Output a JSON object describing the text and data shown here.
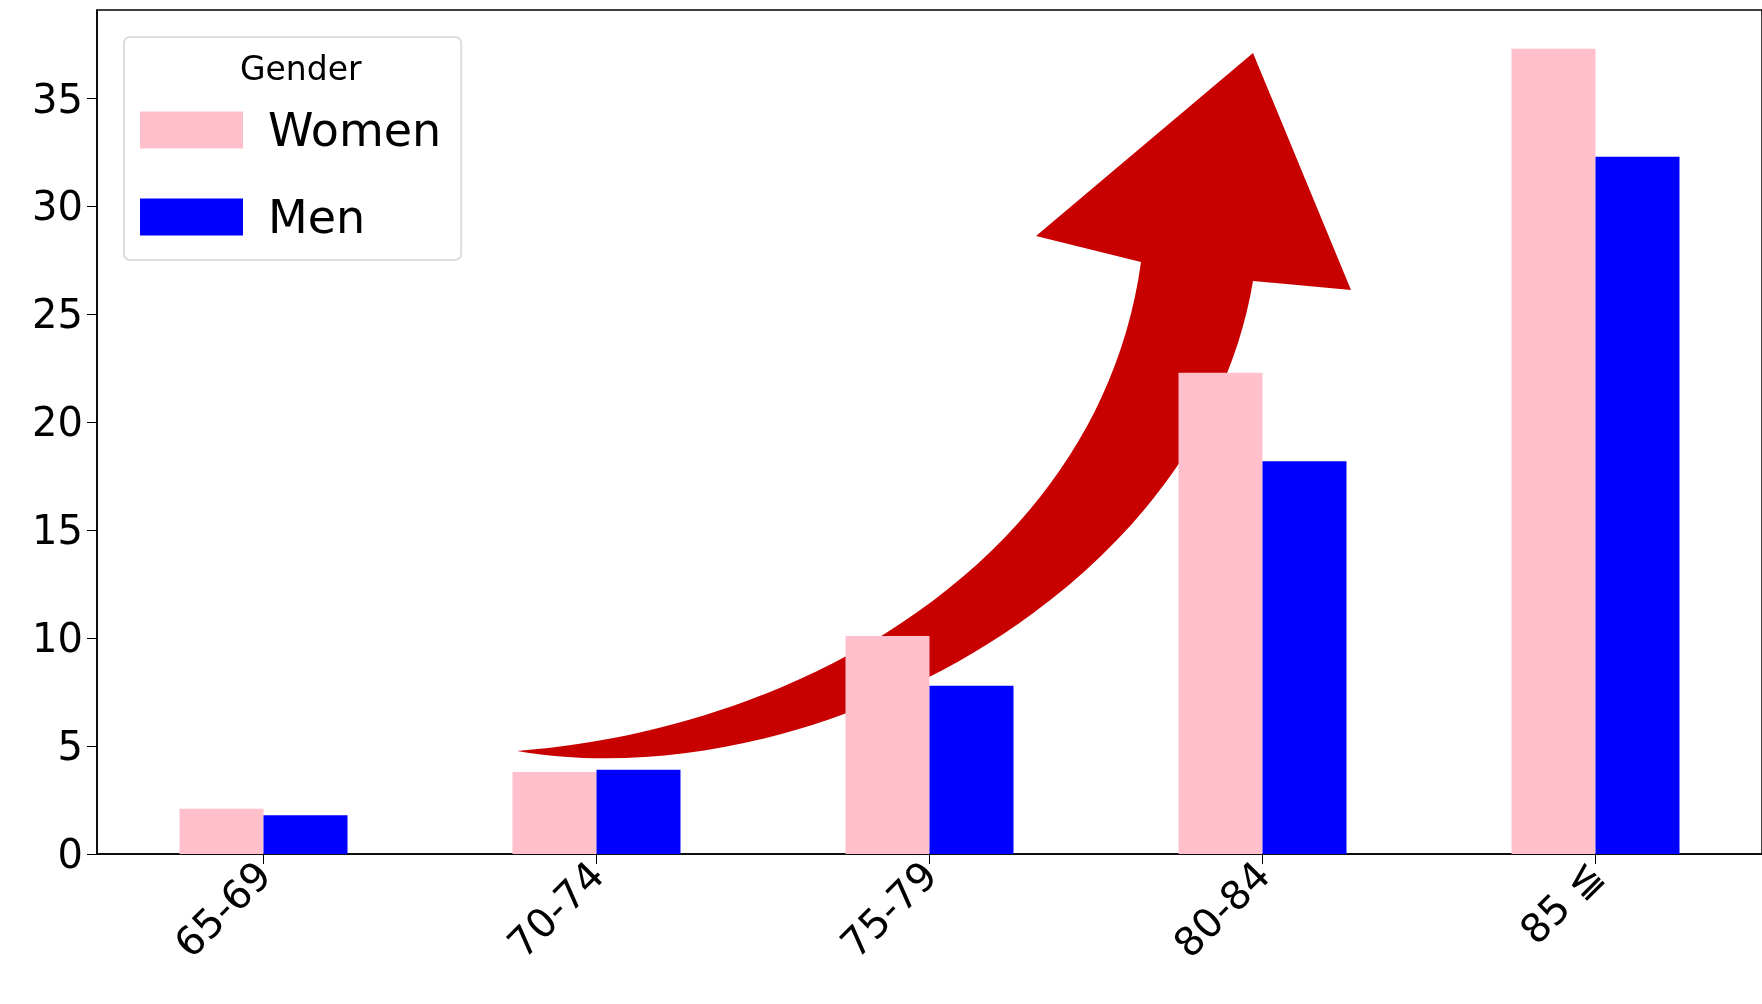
{
  "chart_data": {
    "type": "bar",
    "categories": [
      "65-69",
      "70-74",
      "75-79",
      "80-84",
      "85 ≦"
    ],
    "series": [
      {
        "name": "Women",
        "color": "#ffc0cb",
        "values": [
          2.1,
          3.8,
          10.1,
          22.3,
          37.3
        ]
      },
      {
        "name": "Men",
        "color": "#0000ff",
        "values": [
          1.8,
          3.9,
          7.8,
          18.2,
          32.3
        ]
      }
    ],
    "legend_title": "Gender",
    "legend": "top left",
    "grid": false,
    "ylim": [
      0,
      39.1
    ],
    "yticks": [
      0,
      5,
      10,
      15,
      20,
      25,
      30,
      35
    ]
  }
}
